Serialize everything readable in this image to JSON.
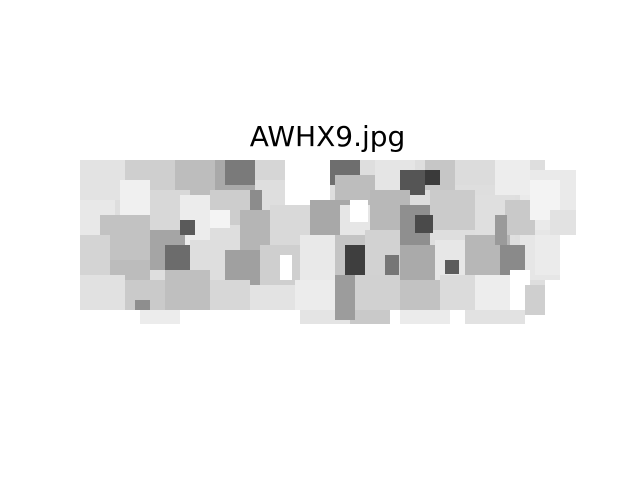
{
  "image": {
    "title": "AWHX9.jpg",
    "description_colors": {
      "background": "#ffffff",
      "text": "#000000"
    }
  }
}
